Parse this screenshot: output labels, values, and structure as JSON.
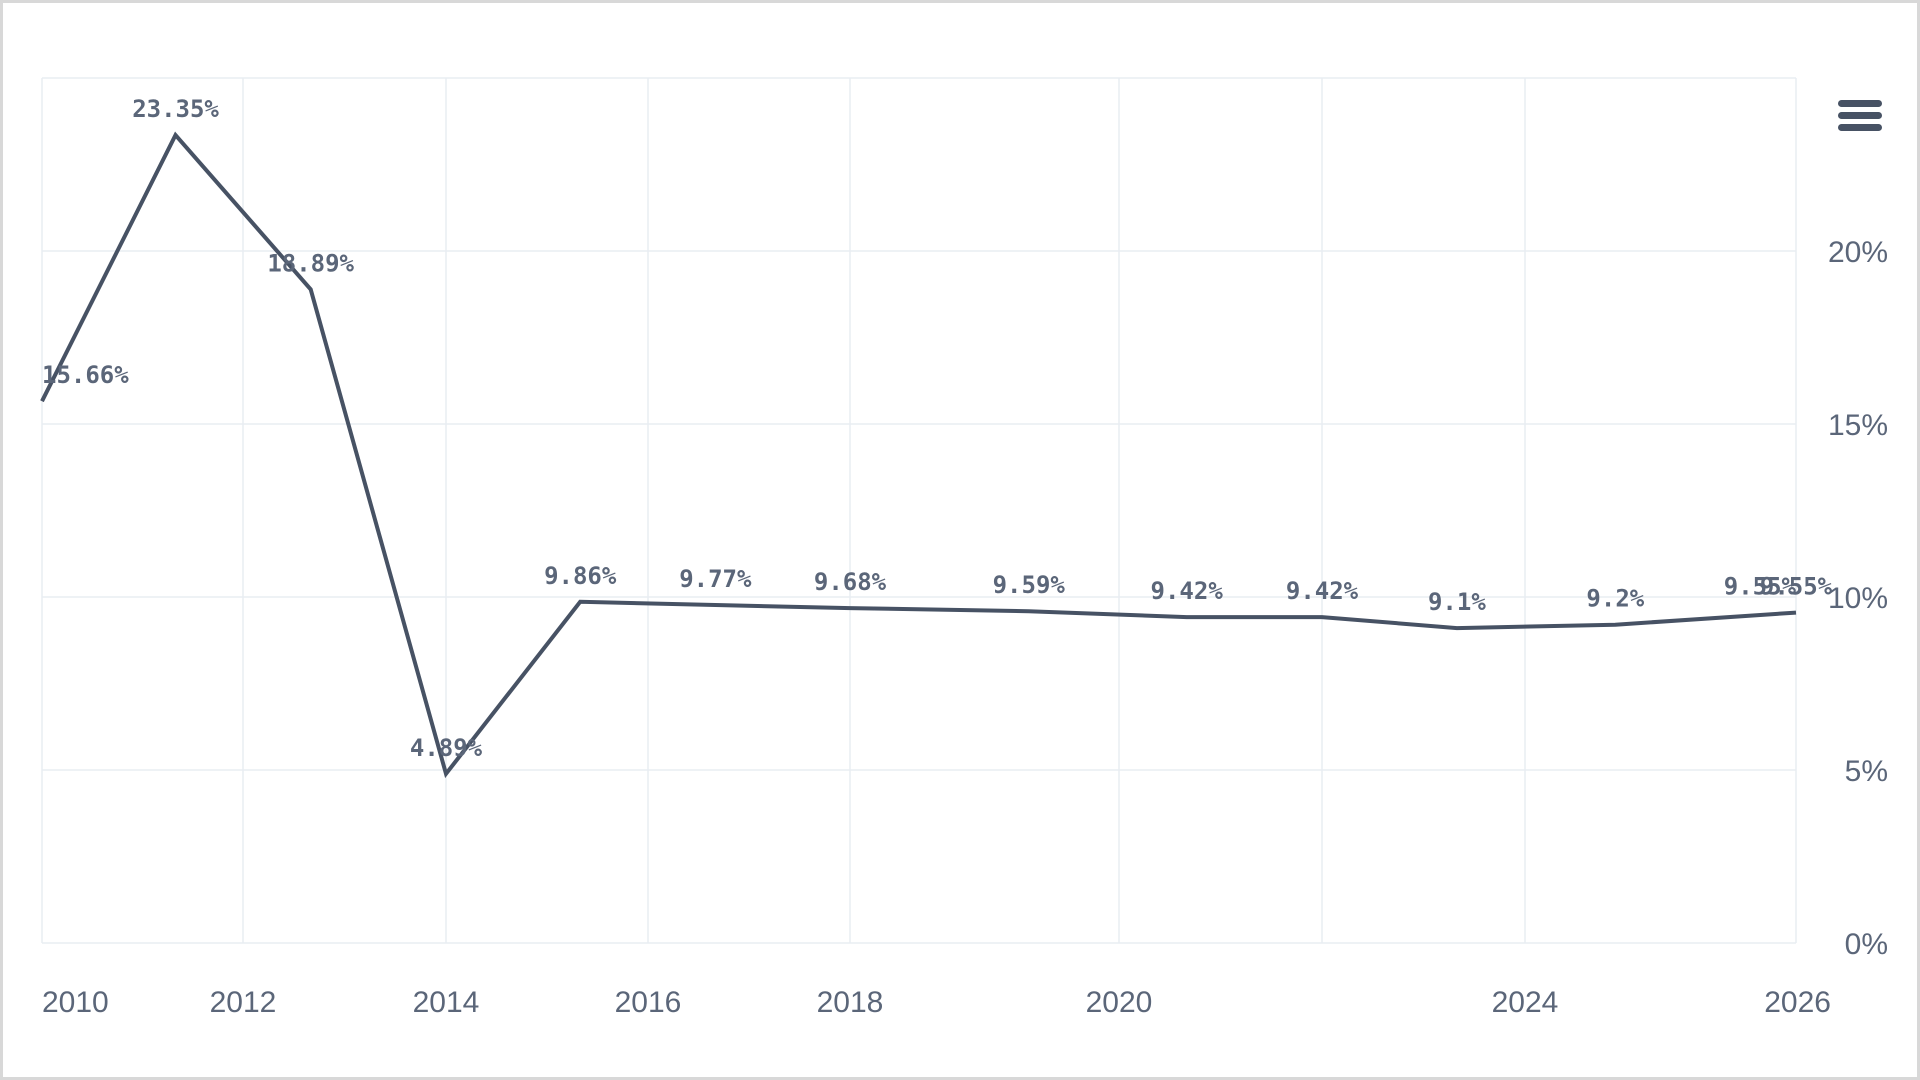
{
  "colors": {
    "line": "#475264",
    "grid": "#e9edf2",
    "label": "#5b6679"
  },
  "icons": {
    "menu": "hamburger-menu-icon"
  },
  "chart_data": {
    "type": "line",
    "title": "",
    "xlabel": "",
    "ylabel": "",
    "xlim": [
      2010,
      2026
    ],
    "ylim": [
      0,
      25
    ],
    "y_axis_side": "right",
    "grid": true,
    "x_ticks": [
      2010,
      2012,
      2014,
      2016,
      2018,
      2020,
      2024,
      2026
    ],
    "x_tick_labels": [
      "2010",
      "2012",
      "2014",
      "2016",
      "2018",
      "2020",
      "2024",
      "2026"
    ],
    "y_ticks": [
      0,
      5,
      10,
      15,
      20
    ],
    "y_tick_labels": [
      "0%",
      "5%",
      "10%",
      "15%",
      "20%"
    ],
    "series": [
      {
        "points": [
          {
            "x": "2010-01-01",
            "y": 15.66,
            "label": "15.66%"
          },
          {
            "x": "2011-05-01",
            "y": 23.35,
            "label": "23.35%"
          },
          {
            "x": "2012-09-01",
            "y": 18.89,
            "label": "18.89%"
          },
          {
            "x": "2014-01-01",
            "y": 4.89,
            "label": "4.89%"
          },
          {
            "x": "2015-05-01",
            "y": 9.86,
            "label": "9.86%"
          },
          {
            "x": "2016-09-01",
            "y": 9.77,
            "label": "9.77%"
          },
          {
            "x": "2018-01-01",
            "y": 9.68,
            "label": "9.68%"
          },
          {
            "x": "2019-05-01",
            "y": 9.59,
            "label": "9.59%"
          },
          {
            "x": "2020-09-01",
            "y": 9.42,
            "label": "9.42%"
          },
          {
            "x": "2022-01-01",
            "y": 9.42,
            "label": "9.42%"
          },
          {
            "x": "2023-05-01",
            "y": 9.1,
            "label": "9.1%"
          },
          {
            "x": "2024-09-01",
            "y": 9.2,
            "label": "9.2%"
          },
          {
            "x": "2026-01-01",
            "y": 9.55,
            "label": "9.55%"
          },
          {
            "x": "2027-05-01",
            "y": 9.55,
            "label": "9.55%"
          }
        ]
      }
    ]
  }
}
